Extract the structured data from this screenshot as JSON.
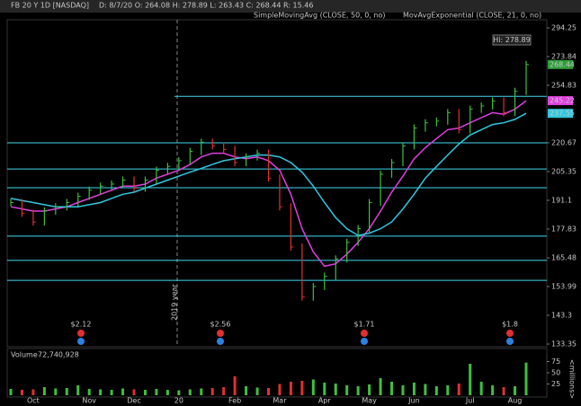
{
  "header": {
    "symbol": "FB 20 Y 1D [NASDAQ]",
    "quote": "D: 8/7/20  O: 264.08  H: 278.89  L: 263.43  C: 268.44  R: 15.46"
  },
  "chart_data": {
    "type": "ohlc",
    "log_scale": true,
    "categories": [
      null,
      null,
      "Oct",
      null,
      null,
      null,
      null,
      "Nov",
      null,
      null,
      null,
      "Dec",
      null,
      null,
      null,
      "20",
      null,
      null,
      null,
      null,
      "Feb",
      null,
      null,
      null,
      "Mar",
      null,
      null,
      null,
      "Apr",
      null,
      null,
      null,
      "May",
      null,
      null,
      null,
      "Jun",
      null,
      null,
      null,
      null,
      "Jul",
      null,
      null,
      null,
      "Aug",
      null
    ],
    "series": [
      {
        "color": "#3fbf3f",
        "down_color": "#e03030",
        "values": [
          190,
          185,
          181,
          186,
          188,
          190,
          193,
          196,
          198,
          199,
          201,
          197,
          201,
          206,
          208,
          211,
          216,
          221,
          219,
          217,
          210,
          213,
          215,
          202,
          188,
          170,
          150,
          154,
          158,
          165,
          172,
          178,
          190,
          204,
          210,
          219,
          229,
          232,
          233,
          238,
          228,
          240,
          242,
          245,
          238,
          251,
          268.44
        ]
      },
      {
        "name": "MovAvgExponential (CLOSE, 21, 0, no)",
        "color": "#e040e0",
        "values": [
          188,
          187,
          186,
          186,
          187,
          188,
          190,
          192,
          194,
          196,
          198,
          198,
          199,
          202,
          204,
          206,
          209,
          213,
          215,
          215,
          213,
          212,
          213,
          211,
          206,
          194,
          178,
          168,
          162,
          163,
          167,
          172,
          178,
          186,
          195,
          203,
          212,
          218,
          223,
          228,
          229,
          232,
          235,
          238,
          237,
          240,
          245.22
        ]
      },
      {
        "name": "SimpleMovingAvg (CLOSE, 50, 0, no)",
        "color": "#30c8e0",
        "values": [
          192,
          191,
          190,
          189,
          188,
          188,
          188,
          189,
          190,
          192,
          194,
          195,
          197,
          199,
          201,
          203,
          205,
          207,
          209,
          211,
          212,
          213,
          214,
          214,
          213,
          210,
          205,
          198,
          190,
          183,
          178,
          175,
          176,
          178,
          181,
          187,
          194,
          202,
          208,
          214,
          220,
          225,
          228,
          231,
          232,
          234,
          237.55
        ]
      }
    ],
    "ylim": [
      133.35,
      294.25
    ],
    "yticks": [
      294.25,
      273.84,
      254.83,
      220.67,
      205.35,
      191.1,
      177.83,
      165.48,
      153.99,
      143.3,
      133.35
    ],
    "levels": [
      247.9,
      220.67,
      206.7,
      197.2,
      174.7,
      164.4,
      156.4
    ],
    "level_color": "#40d8f0",
    "hi_label": "Hi: 278.89",
    "year_label": "2019 year",
    "events": [
      "$2.12",
      "$2.56",
      "$1.71",
      "$1.8"
    ],
    "volume": {
      "label": "Volume",
      "values": [
        14,
        12,
        13,
        18,
        15,
        16,
        22,
        14,
        13,
        12,
        15,
        13,
        12,
        14,
        12,
        11,
        13,
        15,
        16,
        18,
        42,
        20,
        17,
        16,
        25,
        30,
        32,
        35,
        28,
        26,
        22,
        20,
        24,
        38,
        30,
        22,
        28,
        25,
        20,
        22,
        26,
        70,
        30,
        22,
        18,
        20,
        72.740928
      ],
      "value_label": "72,740,928",
      "ylim": [
        0,
        104
      ],
      "yticks": [
        75,
        50,
        25
      ],
      "unit": "<millions>"
    }
  }
}
